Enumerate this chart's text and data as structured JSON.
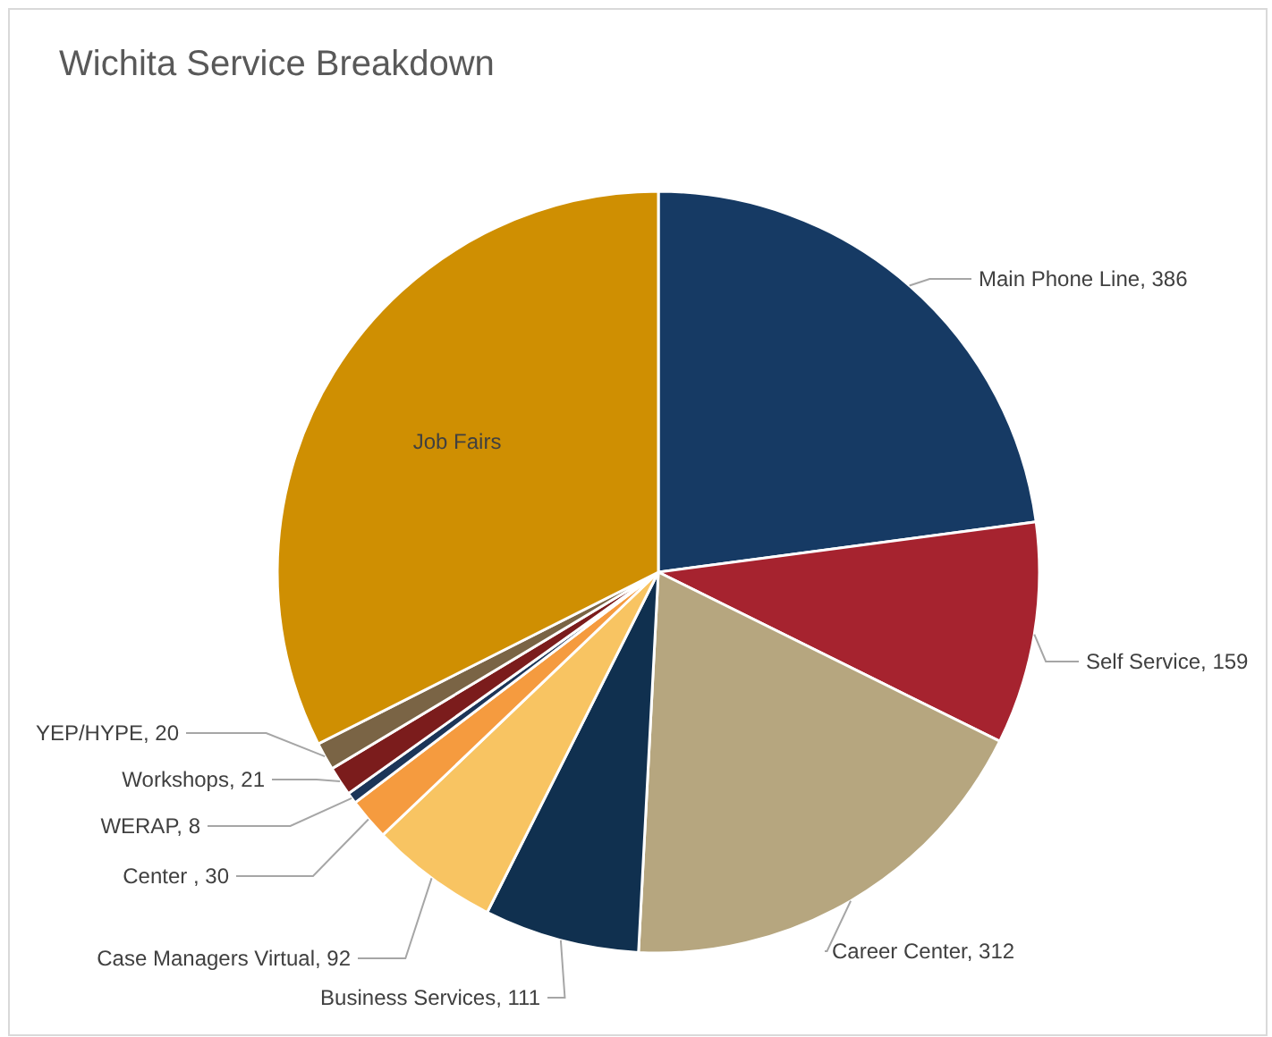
{
  "chart_data": {
    "type": "pie",
    "title": "Wichita Service Breakdown",
    "categories": [
      "Main Phone Line",
      "Self Service",
      "Career Center",
      "Business Services",
      "Case Managers Virtual",
      "Center ",
      "WERAP",
      "Workshops",
      "YEP/HYPE",
      "Job Fairs"
    ],
    "values": [
      386,
      159,
      312,
      111,
      92,
      30,
      8,
      21,
      20,
      547
    ],
    "value_labels": [
      "386",
      "159",
      "312",
      "111",
      "92",
      "30",
      "8",
      "21",
      "20",
      null
    ],
    "colors": [
      "#163a64",
      "#a6232f",
      "#b6a67f",
      "#10304f",
      "#f8c462",
      "#f59b3f",
      "#1c3558",
      "#7b1c1c",
      "#7a6445",
      "#cf8f02"
    ],
    "legend": false
  }
}
